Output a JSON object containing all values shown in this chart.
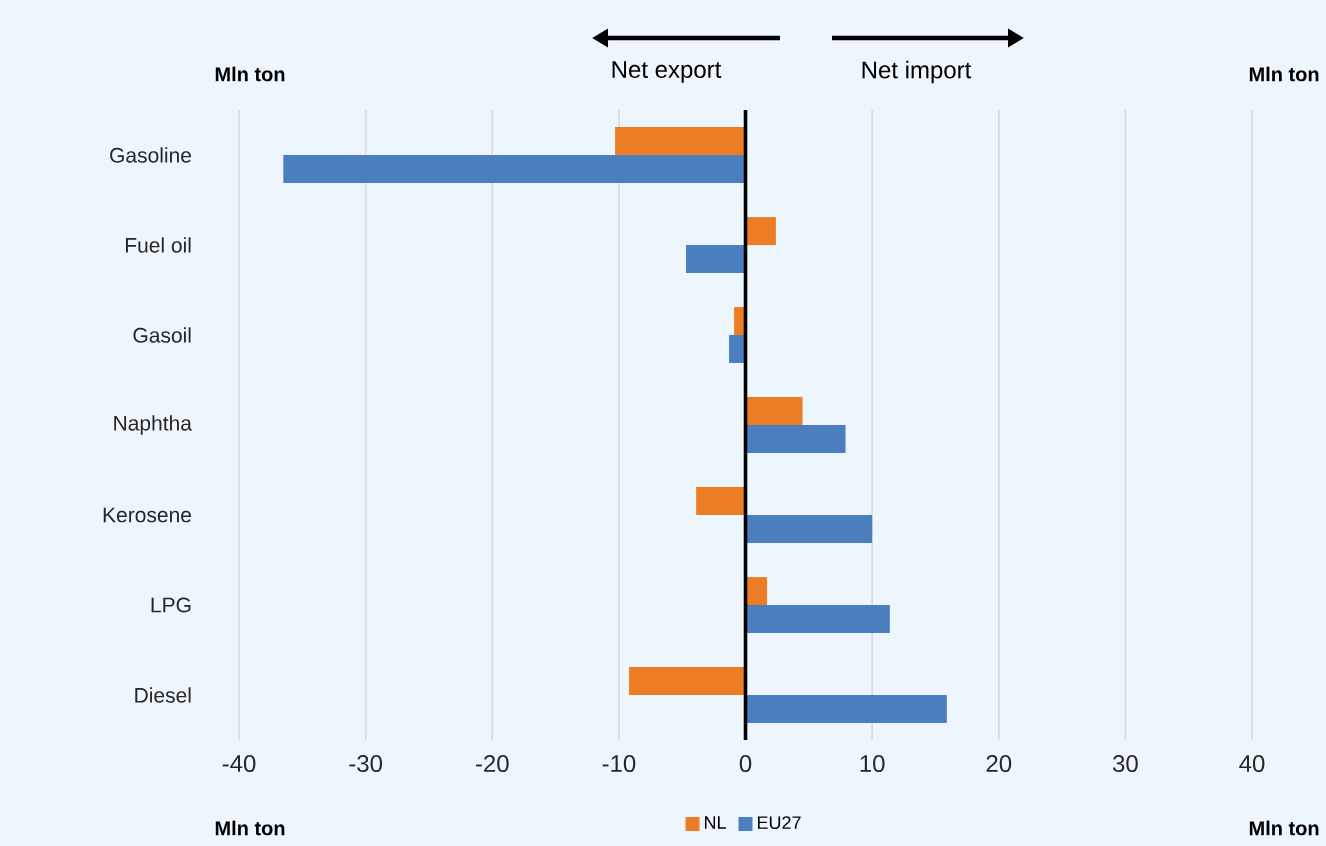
{
  "chart_data": {
    "type": "bar",
    "orientation": "horizontal",
    "categories": [
      "Gasoline",
      "Fuel oil",
      "Gasoil",
      "Naphtha",
      "Kerosene",
      "LPG",
      "Diesel"
    ],
    "series": [
      {
        "name": "NL",
        "color": "#ed7d24",
        "values": [
          -10.3,
          2.4,
          -0.9,
          4.5,
          -3.9,
          1.7,
          -9.2
        ]
      },
      {
        "name": "EU27",
        "color": "#4a7ebf",
        "values": [
          -36.5,
          -4.7,
          -1.3,
          7.9,
          10.0,
          11.4,
          15.9
        ]
      }
    ],
    "xlim": [
      -40,
      40
    ],
    "xticks": [
      -40,
      -30,
      -20,
      -10,
      0,
      10,
      20,
      30,
      40
    ],
    "grid": "x",
    "legend": "bottom",
    "ref_lines": [
      {
        "axis": "x",
        "value": 0,
        "color": "#000000"
      }
    ],
    "annotations": [
      "Mln ton",
      "Mln ton",
      "Mln ton",
      "Mln ton",
      "Net export",
      "Net import"
    ]
  }
}
